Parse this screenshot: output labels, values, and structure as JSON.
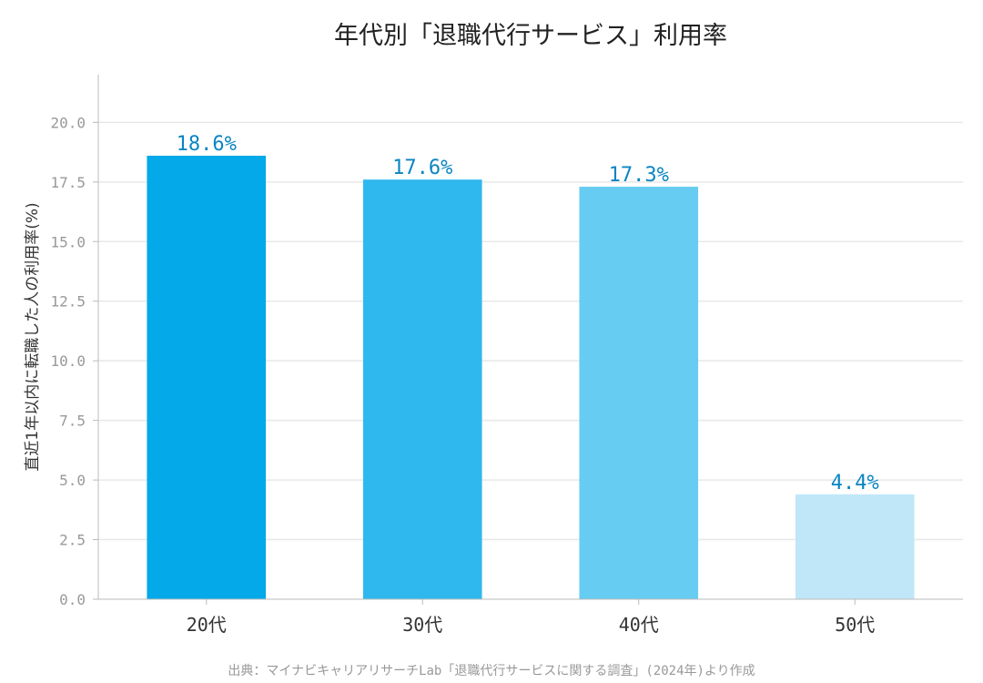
{
  "chart_data": {
    "type": "bar",
    "title": "年代別「退職代行サービス」利用率",
    "xlabel": "",
    "ylabel": "直近1年以内に転職した人の利用率(%)",
    "categories": [
      "20代",
      "30代",
      "40代",
      "50代"
    ],
    "values": [
      18.6,
      17.6,
      17.3,
      4.4
    ],
    "data_labels": [
      "18.6%",
      "17.6%",
      "17.3%",
      "4.4%"
    ],
    "ylim": [
      0,
      22
    ],
    "yticks": [
      0.0,
      2.5,
      5.0,
      7.5,
      10.0,
      12.5,
      15.0,
      17.5,
      20.0
    ],
    "ytick_labels": [
      "0.0",
      "2.5",
      "5.0",
      "7.5",
      "10.0",
      "12.5",
      "15.0",
      "17.5",
      "20.0"
    ],
    "grid": "horizontal",
    "bar_colors": [
      "#03a9e8",
      "#2fb8ee",
      "#67ccf2",
      "#c0e7f8"
    ],
    "label_color": "#0a85c2",
    "source": "出典：マイナビキャリアリサーチLab「退職代行サービスに関する調査」(2024年)より作成"
  }
}
